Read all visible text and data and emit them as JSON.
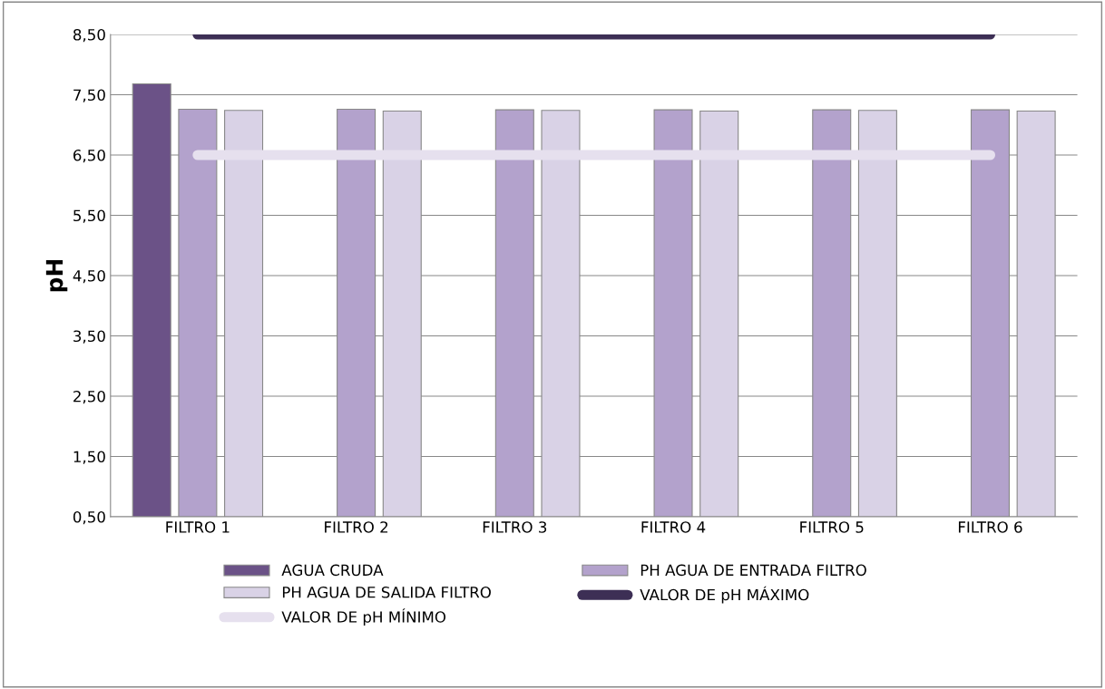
{
  "chart_data": {
    "type": "bar",
    "ylabel": "pH",
    "categories": [
      "FILTRO 1",
      "FILTRO 2",
      "FILTRO 3",
      "FILTRO 4",
      "FILTRO 5",
      "FILTRO 6"
    ],
    "series": [
      {
        "name": "AGUA CRUDA",
        "color": "#6b5287",
        "values": [
          7.68,
          null,
          null,
          null,
          null,
          null
        ]
      },
      {
        "name": "PH AGUA DE ENTRADA FILTRO",
        "color": "#b3a2cc",
        "values": [
          7.26,
          7.26,
          7.25,
          7.25,
          7.25,
          7.25
        ]
      },
      {
        "name": "PH AGUA DE SALIDA FILTRO",
        "color": "#d9d2e6",
        "values": [
          7.24,
          7.23,
          7.24,
          7.23,
          7.24,
          7.23
        ]
      },
      {
        "name": "VALOR DE pH MÁXIMO",
        "type": "line",
        "color": "#3d2f55",
        "values": [
          8.5,
          8.5,
          8.5,
          8.5,
          8.5,
          8.5
        ]
      },
      {
        "name": "VALOR DE pH MÍNIMO",
        "type": "line",
        "color": "#e6e0ee",
        "values": [
          6.5,
          6.5,
          6.5,
          6.5,
          6.5,
          6.5
        ]
      }
    ],
    "ylim": [
      0.5,
      8.5
    ],
    "yticks": [
      {
        "value": 0.5,
        "label": "0,50"
      },
      {
        "value": 1.5,
        "label": "1,50"
      },
      {
        "value": 2.5,
        "label": "2,50"
      },
      {
        "value": 3.5,
        "label": "3,50"
      },
      {
        "value": 4.5,
        "label": "4,50"
      },
      {
        "value": 5.5,
        "label": "5,50"
      },
      {
        "value": 6.5,
        "label": "6,50"
      },
      {
        "value": 7.5,
        "label": "7,50"
      },
      {
        "value": 8.5,
        "label": "8,50"
      }
    ],
    "grid": "y",
    "legend": "bottom"
  }
}
